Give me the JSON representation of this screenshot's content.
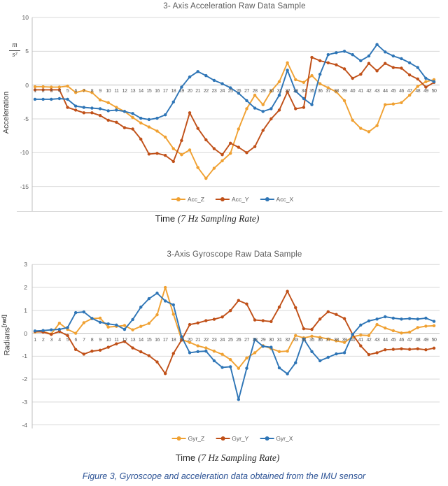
{
  "figure": {
    "caption": "Figure 3, Gyroscope and acceleration data obtained from the IMU sensor"
  },
  "chart_data": [
    {
      "type": "line",
      "title": "3- Axis Acceleration Raw Data Sample",
      "ylabel": "Acceleration",
      "y_unit_numerator": "m",
      "y_unit_denominator": "s²",
      "xlabel_prefix": "Time ",
      "xlabel_math": "(7 Hz Sampling Rate)",
      "ylim": [
        -15,
        10
      ],
      "yticks": [
        10,
        5,
        0,
        -5,
        -10,
        -15
      ],
      "grid": true,
      "legend_position": "bottom",
      "x": [
        1,
        2,
        3,
        4,
        5,
        6,
        7,
        8,
        9,
        10,
        11,
        12,
        13,
        14,
        15,
        16,
        17,
        18,
        19,
        20,
        21,
        22,
        23,
        24,
        25,
        26,
        27,
        28,
        29,
        30,
        31,
        32,
        33,
        34,
        35,
        36,
        37,
        38,
        39,
        40,
        41,
        42,
        43,
        44,
        45,
        46,
        47,
        48,
        49,
        50
      ],
      "series": [
        {
          "name": "Acc_Z",
          "color": "#F0A132",
          "values": [
            -0.25,
            -0.25,
            -0.3,
            -0.3,
            -0.15,
            -1.1,
            -0.8,
            -1.1,
            -2.2,
            -2.6,
            -3.3,
            -3.9,
            -4.8,
            -5.6,
            -6.2,
            -6.8,
            -7.7,
            -9.4,
            -10.3,
            -9.6,
            -12.2,
            -13.8,
            -12.3,
            -11.2,
            -10.1,
            -6.5,
            -3.5,
            -1.5,
            -2.9,
            -0.9,
            0.5,
            3.3,
            0.8,
            0.4,
            1.4,
            0.2,
            -0.4,
            -1.0,
            -2.3,
            -5.2,
            -6.4,
            -6.9,
            -6.0,
            -2.9,
            -2.8,
            -2.6,
            -1.5,
            -0.2,
            0.5,
            0.8
          ]
        },
        {
          "name": "Acc_Y",
          "color": "#C05018",
          "values": [
            -0.7,
            -0.7,
            -0.7,
            -0.7,
            -3.3,
            -3.7,
            -4.1,
            -4.1,
            -4.5,
            -5.2,
            -5.5,
            -6.3,
            -6.5,
            -8.0,
            -10.2,
            -10.1,
            -10.4,
            -11.3,
            -8.2,
            -4.1,
            -6.4,
            -8.1,
            -9.4,
            -10.3,
            -8.6,
            -9.2,
            -10.0,
            -9.1,
            -6.7,
            -5.0,
            -3.7,
            -1.0,
            -3.5,
            -3.3,
            4.1,
            3.6,
            3.3,
            3.0,
            2.4,
            1.0,
            1.6,
            3.2,
            2.1,
            3.2,
            2.6,
            2.5,
            1.5,
            0.9,
            -0.3,
            0.4
          ]
        },
        {
          "name": "Acc_X",
          "color": "#2E75B6",
          "values": [
            -2.1,
            -2.1,
            -2.1,
            -2.0,
            -2.1,
            -3.1,
            -3.3,
            -3.4,
            -3.5,
            -3.8,
            -3.7,
            -3.9,
            -4.2,
            -4.9,
            -5.1,
            -4.9,
            -4.4,
            -2.5,
            -0.3,
            1.2,
            2.0,
            1.4,
            0.7,
            0.2,
            -0.4,
            -1.2,
            -2.3,
            -3.4,
            -3.9,
            -3.5,
            -1.5,
            2.2,
            -0.9,
            -2.0,
            -2.9,
            1.6,
            4.5,
            4.8,
            5.0,
            4.5,
            3.6,
            4.3,
            6.0,
            4.9,
            4.3,
            3.9,
            3.3,
            2.6,
            1.0,
            0.5
          ]
        }
      ]
    },
    {
      "type": "line",
      "title": "3-Axis Gyroscope Raw Data Sample",
      "ylabel": "Radians",
      "y_unit_suffix": "[rad]",
      "xlabel_prefix": "Time ",
      "xlabel_math": "(7 Hz Sampling Rate)",
      "ylim": [
        -4,
        3
      ],
      "yticks": [
        3,
        2,
        1,
        0,
        -1,
        -2,
        -3,
        -4
      ],
      "grid": true,
      "legend_position": "bottom",
      "x": [
        1,
        2,
        3,
        4,
        5,
        6,
        7,
        8,
        9,
        10,
        11,
        12,
        13,
        14,
        15,
        16,
        17,
        18,
        19,
        20,
        21,
        22,
        23,
        24,
        25,
        26,
        27,
        28,
        29,
        30,
        31,
        32,
        33,
        34,
        35,
        36,
        37,
        38,
        39,
        40,
        41,
        42,
        43,
        44,
        45,
        46,
        47,
        48,
        49,
        50
      ],
      "series": [
        {
          "name": "Gyr_Z",
          "color": "#F0A132",
          "values": [
            0.05,
            0.07,
            -0.03,
            0.44,
            0.17,
            0.0,
            0.46,
            0.64,
            0.66,
            0.27,
            0.3,
            0.34,
            0.15,
            0.3,
            0.43,
            0.81,
            2.0,
            0.83,
            -0.27,
            -0.4,
            -0.55,
            -0.64,
            -0.78,
            -0.92,
            -1.15,
            -1.53,
            -1.08,
            -0.85,
            -0.54,
            -0.67,
            -0.8,
            -0.78,
            -0.1,
            -0.2,
            -0.13,
            -0.18,
            -0.25,
            -0.33,
            -0.4,
            -0.15,
            -0.08,
            -0.1,
            0.38,
            0.23,
            0.11,
            0.01,
            0.05,
            0.25,
            0.31,
            0.33
          ]
        },
        {
          "name": "Gyr_Y",
          "color": "#C05018",
          "values": [
            0.08,
            0.05,
            -0.05,
            0.08,
            -0.1,
            -0.71,
            -0.91,
            -0.78,
            -0.74,
            -0.61,
            -0.46,
            -0.36,
            -0.64,
            -0.81,
            -0.98,
            -1.25,
            -1.76,
            -0.88,
            -0.3,
            0.38,
            0.45,
            0.55,
            0.61,
            0.71,
            0.99,
            1.43,
            1.28,
            0.58,
            0.55,
            0.51,
            1.14,
            1.83,
            1.12,
            0.2,
            0.17,
            0.62,
            0.94,
            0.82,
            0.64,
            -0.05,
            -0.55,
            -0.93,
            -0.85,
            -0.72,
            -0.7,
            -0.68,
            -0.7,
            -0.68,
            -0.72,
            -0.65
          ]
        },
        {
          "name": "Gyr_X",
          "color": "#2E75B6",
          "values": [
            0.1,
            0.12,
            0.15,
            0.17,
            0.25,
            0.9,
            0.93,
            0.65,
            0.48,
            0.41,
            0.36,
            0.17,
            0.6,
            1.14,
            1.51,
            1.75,
            1.41,
            1.24,
            -0.15,
            -0.85,
            -0.8,
            -0.78,
            -1.2,
            -1.49,
            -1.46,
            -2.89,
            -1.53,
            -0.27,
            -0.57,
            -0.61,
            -1.51,
            -1.77,
            -1.29,
            -0.25,
            -0.8,
            -1.2,
            -1.05,
            -0.9,
            -0.85,
            -0.05,
            0.36,
            0.54,
            0.62,
            0.72,
            0.66,
            0.62,
            0.64,
            0.62,
            0.66,
            0.52
          ]
        }
      ]
    }
  ]
}
